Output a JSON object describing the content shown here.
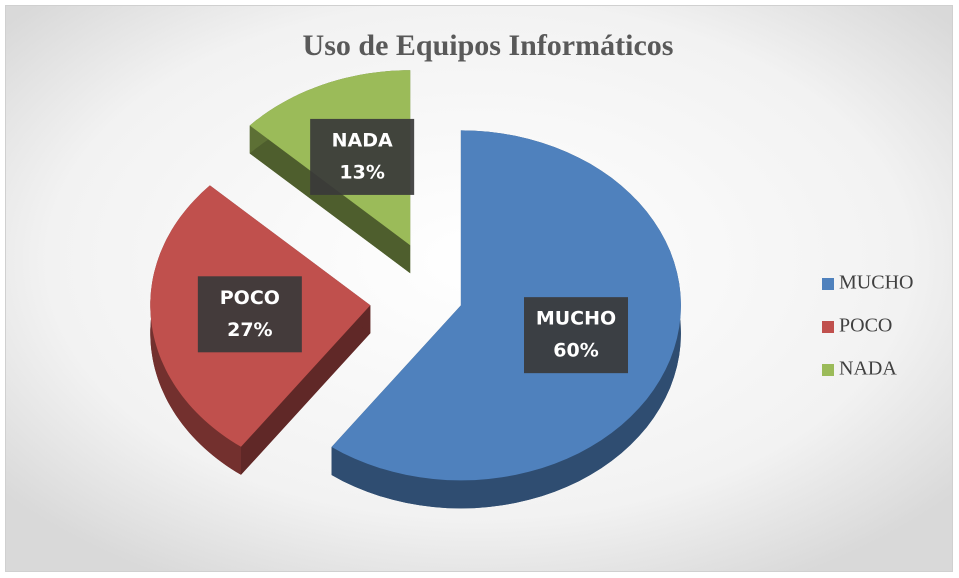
{
  "chart_data": {
    "type": "pie3d",
    "title": "Uso de Equipos Informáticos",
    "categories": [
      "MUCHO",
      "POCO",
      "NADA"
    ],
    "values": [
      60,
      27,
      13
    ],
    "value_labels": [
      "60%",
      "27%",
      "13%"
    ],
    "colors": [
      "#4f81bd",
      "#c0504d",
      "#9bbb59"
    ],
    "legend": "right"
  }
}
